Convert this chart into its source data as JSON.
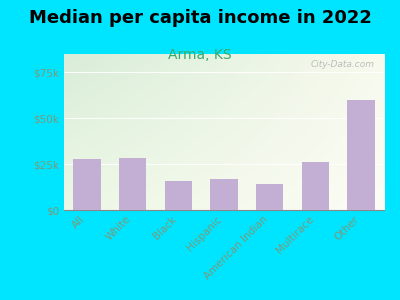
{
  "title": "Median per capita income in 2022",
  "subtitle": "Arma, KS",
  "categories": [
    "All",
    "White",
    "Black",
    "Hispanic",
    "American Indian",
    "Multirace",
    "Other"
  ],
  "values": [
    28000,
    28500,
    16000,
    17000,
    14000,
    26000,
    60000
  ],
  "bar_color": "#c4afd4",
  "title_fontsize": 13,
  "subtitle_fontsize": 10,
  "subtitle_color": "#3aaa6a",
  "tick_label_color": "#7a9a7a",
  "background_outer": "#00e5ff",
  "background_inner_topleft": "#d8edd8",
  "background_inner_bottomright": "#f8f8e8",
  "ylim": [
    0,
    85000
  ],
  "yticks": [
    0,
    25000,
    50000,
    75000
  ],
  "ytick_labels": [
    "$0",
    "$25k",
    "$50k",
    "$75k"
  ],
  "watermark": "City-Data.com"
}
